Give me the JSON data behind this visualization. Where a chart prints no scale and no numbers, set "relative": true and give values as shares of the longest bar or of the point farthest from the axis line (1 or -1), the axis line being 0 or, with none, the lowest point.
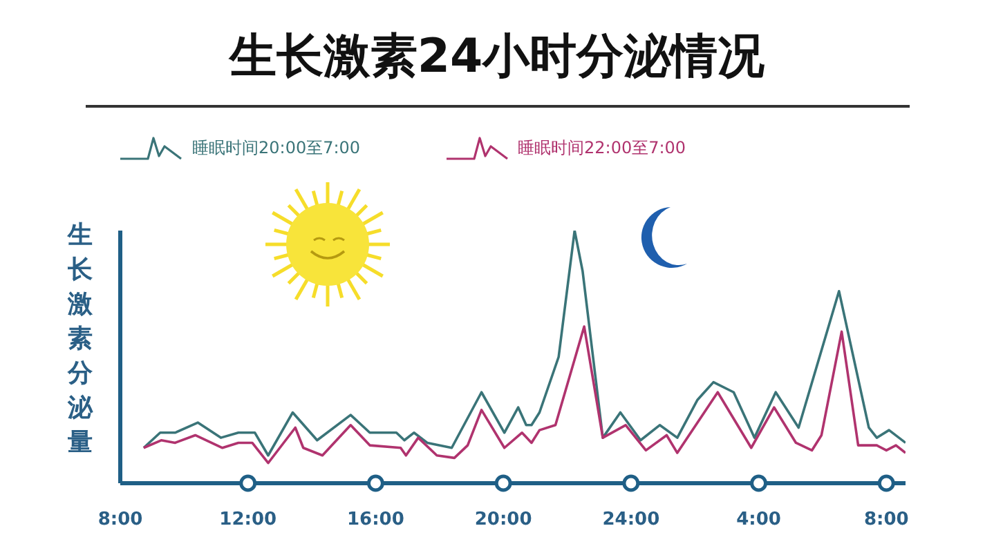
{
  "chart_data": {
    "type": "line",
    "title": "生长激素24小时分泌情况",
    "ylabel": "生长激素分泌量",
    "relative": true,
    "legend": "top",
    "grid": false,
    "marker": "none",
    "line_style": "solid",
    "xlim": [
      "--01-01T08:00",
      "--01-02T08:36"
    ],
    "xticks": [
      {
        "value": "--01-01T08:00",
        "label": "8:00"
      },
      {
        "value": "--01-01T12:00",
        "label": "12:00"
      },
      {
        "value": "--01-01T16:00",
        "label": "16:00"
      },
      {
        "value": "--01-01T20:00",
        "label": "20:00"
      },
      {
        "value": "--01-02T00:00",
        "label": "24:00"
      },
      {
        "value": "--01-02T04:00",
        "label": "4:00"
      },
      {
        "value": "--01-02T08:00",
        "label": "8:00"
      }
    ],
    "series": [
      {
        "name": "睡眠时间20:00至7:00",
        "color": "#3a7478",
        "x": [
          "--01-01T08:44",
          "--01-01T09:15",
          "--01-01T09:43",
          "--01-01T10:26",
          "--01-01T11:09",
          "--01-01T11:42",
          "--01-01T12:13",
          "--01-01T12:38",
          "--01-01T13:24",
          "--01-01T14:10",
          "--01-01T15:13",
          "--01-01T15:49",
          "--01-01T16:39",
          "--01-01T16:54",
          "--01-01T17:12",
          "--01-01T17:37",
          "--01-01T18:23",
          "--01-01T19:19",
          "--01-01T20:02",
          "--01-01T20:28",
          "--01-01T20:43",
          "--01-01T20:53",
          "--01-01T21:08",
          "--01-01T21:44",
          "--01-01T22:14",
          "--01-01T22:29",
          "--01-01T23:07",
          "--01-01T23:40",
          "--01-02T00:18",
          "--01-02T00:54",
          "--01-02T01:27",
          "--01-02T02:05",
          "--01-02T02:35",
          "--01-02T03:13",
          "--01-02T03:52",
          "--01-02T04:32",
          "--01-02T05:15",
          "--01-02T06:31",
          "--01-02T07:27",
          "--01-02T07:42",
          "--01-02T08:05",
          "--01-02T08:36"
        ],
        "values": [
          0.14,
          0.2,
          0.2,
          0.24,
          0.18,
          0.2,
          0.2,
          0.11,
          0.28,
          0.17,
          0.27,
          0.2,
          0.2,
          0.17,
          0.2,
          0.16,
          0.14,
          0.36,
          0.2,
          0.3,
          0.23,
          0.23,
          0.28,
          0.5,
          1.0,
          0.84,
          0.18,
          0.28,
          0.17,
          0.23,
          0.18,
          0.33,
          0.4,
          0.36,
          0.18,
          0.36,
          0.22,
          0.76,
          0.22,
          0.18,
          0.21,
          0.16
        ]
      },
      {
        "name": "睡眠时间22:00至7:00",
        "color": "#b0336e",
        "x": [
          "--01-01T08:44",
          "--01-01T09:17",
          "--01-01T09:43",
          "--01-01T10:21",
          "--01-01T11:12",
          "--01-01T11:42",
          "--01-01T12:08",
          "--01-01T12:38",
          "--01-01T13:29",
          "--01-01T13:44",
          "--01-01T14:20",
          "--01-01T15:13",
          "--01-01T15:49",
          "--01-01T16:47",
          "--01-01T16:57",
          "--01-01T17:20",
          "--01-01T17:55",
          "--01-01T18:28",
          "--01-01T18:53",
          "--01-01T19:19",
          "--01-01T20:02",
          "--01-01T20:35",
          "--01-01T20:53",
          "--01-01T21:08",
          "--01-01T21:38",
          "--01-01T22:32",
          "--01-01T23:07",
          "--01-01T23:50",
          "--01-02T00:28",
          "--01-02T01:07",
          "--01-02T01:27",
          "--01-02T02:43",
          "--01-02T03:46",
          "--01-02T04:29",
          "--01-02T05:10",
          "--01-02T05:40",
          "--01-02T05:58",
          "--01-02T06:36",
          "--01-02T07:07",
          "--01-02T07:42",
          "--01-02T08:00",
          "--01-02T08:18",
          "--01-02T08:36"
        ],
        "values": [
          0.14,
          0.17,
          0.16,
          0.19,
          0.14,
          0.16,
          0.16,
          0.08,
          0.22,
          0.14,
          0.11,
          0.23,
          0.15,
          0.14,
          0.11,
          0.18,
          0.11,
          0.1,
          0.15,
          0.29,
          0.14,
          0.2,
          0.16,
          0.21,
          0.23,
          0.62,
          0.18,
          0.23,
          0.13,
          0.19,
          0.12,
          0.36,
          0.14,
          0.3,
          0.16,
          0.13,
          0.19,
          0.6,
          0.15,
          0.15,
          0.13,
          0.15,
          0.12
        ]
      }
    ]
  }
}
